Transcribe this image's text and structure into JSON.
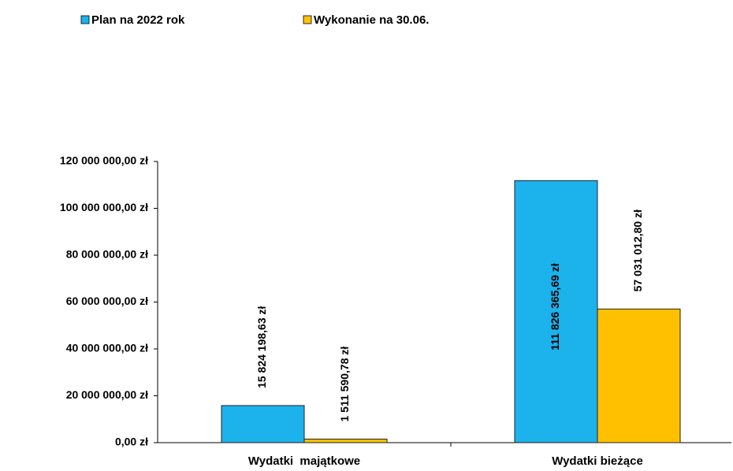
{
  "chart_data": {
    "type": "bar",
    "categories": [
      "Wydatki  majątkowe",
      "Wydatki bieżące"
    ],
    "series": [
      {
        "name": "Plan na 2022 rok",
        "color": "#1cb2ec",
        "values": [
          15824198.63,
          111826365.69
        ],
        "value_labels": [
          "15 824 198,63 zł",
          "111 826 365,69 zł"
        ]
      },
      {
        "name": "Wykonanie na 30.06.",
        "color": "#ffc000",
        "values": [
          1511590.78,
          57031012.8
        ],
        "value_labels": [
          "1 511 590,78 zł",
          "57 031 012,80 zł"
        ]
      }
    ],
    "ylim": [
      0,
      120000000
    ],
    "yticks": [
      {
        "value": 0,
        "label": "0,00 zł"
      },
      {
        "value": 20000000,
        "label": "20 000 000,00 zł"
      },
      {
        "value": 40000000,
        "label": "40 000 000,00 zł"
      },
      {
        "value": 60000000,
        "label": "60 000 000,00 zł"
      },
      {
        "value": 80000000,
        "label": "80 000 000,00 zł"
      },
      {
        "value": 100000000,
        "label": "100 000 000,00 zł"
      },
      {
        "value": 120000000,
        "label": "120 000 000,00 zł"
      }
    ],
    "legend": "top"
  }
}
